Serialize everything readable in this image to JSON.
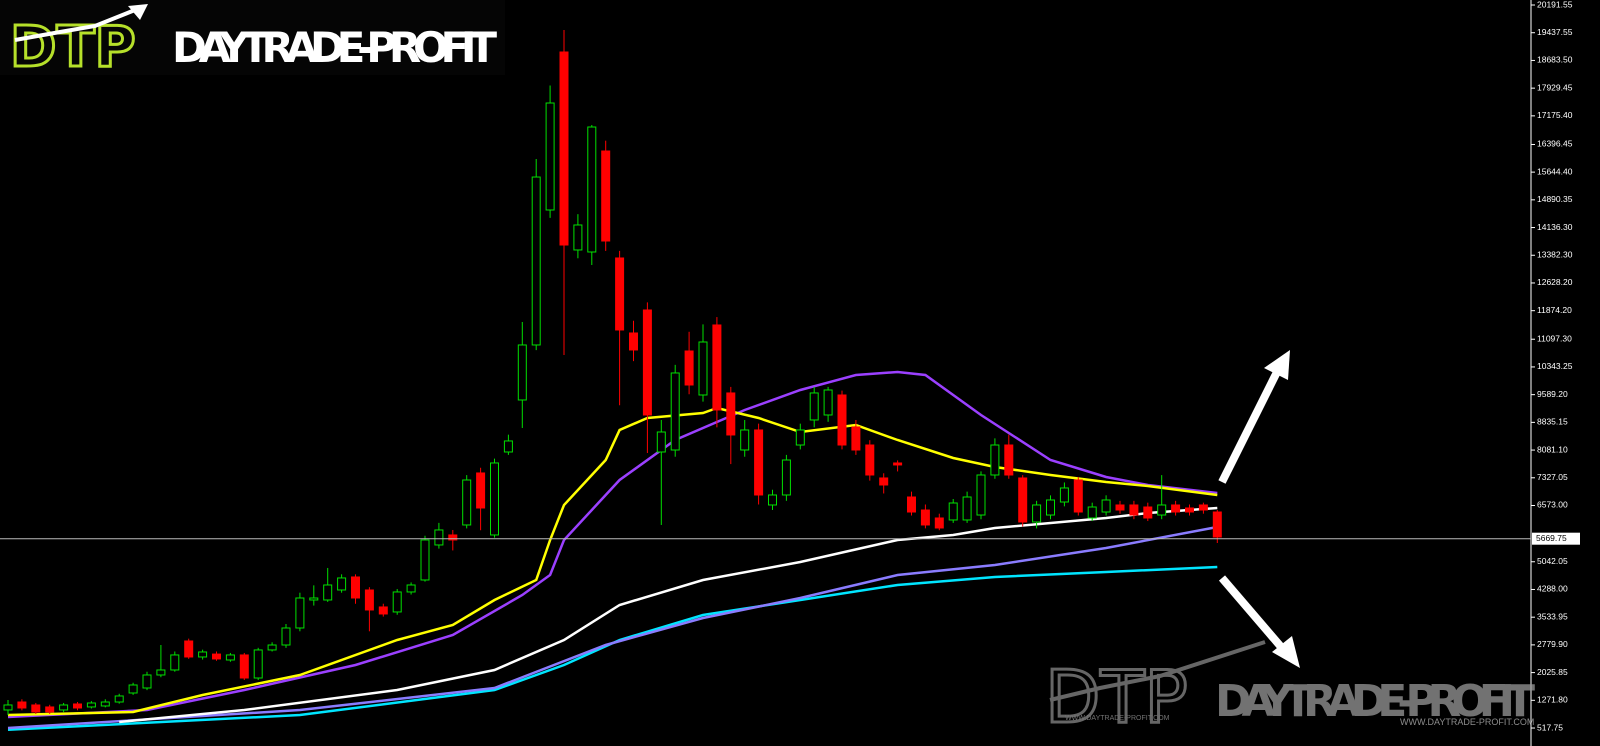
{
  "chart_data": {
    "type": "candlestick",
    "logo_mark": "DTP",
    "logo_text": "DAYTRADE-PROFIT",
    "watermark_mark": "DTP",
    "watermark_text": "DAYTRADE-PROFIT",
    "watermark_url_left": "WWW.DAYTRADE-PROFIT.COM",
    "watermark_url_right": "WWW.DAYTRADE-PROFIT.COM",
    "current_price": 5669.75,
    "up_color": "#00e000",
    "down_color": "#ff0000",
    "ylim": [
      464,
      20328
    ],
    "yticks": [
      20191.55,
      19437.55,
      {
        "value": 18683.5,
        "label": "18683.50"
      },
      17929.45,
      {
        "value": 17175.4,
        "label": "17175.40"
      },
      16396.45,
      {
        "value": 15644.4,
        "label": "15644.40"
      },
      14890.35,
      {
        "value": 14136.3,
        "label": "14136.30"
      },
      {
        "value": 13382.3,
        "label": "13382.30"
      },
      {
        "value": 12628.2,
        "label": "12628.20"
      },
      {
        "value": 11874.2,
        "label": "11874.20"
      },
      {
        "value": 11097.3,
        "label": "11097.30"
      },
      10343.25,
      {
        "value": 9589.2,
        "label": "9589.20"
      },
      8835.15,
      {
        "value": 8081.1,
        "label": "8081.10"
      },
      7327.05,
      {
        "value": 6573,
        "label": "6573.00"
      },
      5042.05,
      {
        "value": 4288,
        "label": "4288.00"
      },
      3533.95,
      {
        "value": 2779.9,
        "label": "2779.90"
      },
      2025.85,
      {
        "value": 1271.8,
        "label": "1271.80"
      },
      517.75
    ],
    "candles": {
      "open": [
        1009,
        1226,
        1145,
        1091,
        1009,
        1172,
        1091,
        1118,
        1226,
        1471,
        1607,
        1961,
        2097,
        2886,
        2451,
        2530,
        2369,
        2506,
        1879,
        2642,
        2777,
        3240,
        4002,
        4002,
        4274,
        4628,
        4274,
        3812,
        3676,
        4220,
        4546,
        5499,
        5771,
        6043,
        7458,
        5771,
        8029,
        9444,
        10941,
        14614,
        18913,
        13526,
        13471,
        16219,
        13308,
        11267,
        11893,
        8029,
        8083,
        10777,
        9580,
        11485,
        9635,
        8083,
        8628,
        6587,
        6859,
        8219,
        8900,
        9036,
        9580,
        8710,
        8219,
        7322,
        7730,
        6804,
        6450,
        6233,
        6179,
        6179,
        6314,
        7403,
        8219,
        7322,
        6124,
        6314,
        6668,
        7267,
        6233,
        6396,
        6587,
        6587,
        6532,
        6314,
        6587,
        6505,
        6587,
        6396
      ],
      "high": [
        1281,
        1300,
        1200,
        1150,
        1200,
        1226,
        1250,
        1300,
        1450,
        1750,
        2050,
        2777,
        2600,
        2950,
        2650,
        2600,
        2560,
        2560,
        2700,
        2850,
        3350,
        4200,
        4400,
        4873,
        4700,
        4700,
        4350,
        3900,
        4300,
        4480,
        5750,
        6100,
        5907,
        7400,
        7600,
        7850,
        8500,
        11566,
        16000,
        18000,
        19512,
        14500,
        16927,
        16500,
        13500,
        11600,
        12100,
        8900,
        10400,
        11300,
        11500,
        11700,
        9800,
        8900,
        8800,
        7000,
        7950,
        8800,
        9800,
        9800,
        9700,
        8900,
        8350,
        7450,
        7800,
        6950,
        6600,
        6350,
        6750,
        6950,
        7500,
        8400,
        8500,
        7400,
        6700,
        6850,
        7200,
        7350,
        6650,
        6850,
        6700,
        6700,
        6650,
        7400,
        6700,
        6600,
        6650,
        6450
      ],
      "low": [
        873,
        1000,
        900,
        900,
        950,
        1000,
        1050,
        1080,
        1180,
        1420,
        1550,
        1900,
        2050,
        2400,
        2380,
        2350,
        2320,
        1825,
        1825,
        2600,
        2700,
        3150,
        3850,
        3950,
        4200,
        3900,
        3150,
        3550,
        3600,
        4150,
        4500,
        5400,
        5350,
        5950,
        5900,
        5700,
        7950,
        8682,
        10800,
        14400,
        10668,
        13300,
        13117,
        13500,
        9300,
        10500,
        8000,
        6043,
        7900,
        9600,
        9400,
        8700,
        7700,
        7900,
        6600,
        6450,
        6700,
        8100,
        8700,
        8850,
        8100,
        7950,
        7250,
        6900,
        7500,
        6300,
        5950,
        5900,
        6100,
        6100,
        6200,
        7300,
        7300,
        6000,
        5950,
        6200,
        6550,
        6300,
        6150,
        6300,
        6350,
        6200,
        6150,
        6200,
        6300,
        6300,
        6350,
        5553
      ],
      "close": [
        1145,
        1063,
        954,
        954,
        1145,
        1063,
        1199,
        1226,
        1390,
        1689,
        1961,
        2097,
        2506,
        2451,
        2587,
        2397,
        2506,
        1879,
        2642,
        2777,
        3240,
        4056,
        4056,
        4410,
        4601,
        4056,
        3730,
        3621,
        4220,
        4410,
        5635,
        5907,
        5635,
        7267,
        6505,
        7730,
        8329,
        10941,
        15511,
        17525,
        13661,
        14206,
        16872,
        13770,
        11349,
        10805,
        9036,
        8573,
        10179,
        9852,
        11022,
        9172,
        8492,
        8628,
        6859,
        6859,
        7811,
        8628,
        9635,
        9716,
        8219,
        8083,
        7403,
        7131,
        7676,
        6396,
        6043,
        5961,
        6641,
        6804,
        7403,
        8219,
        7403,
        6124,
        6587,
        6723,
        7050,
        6396,
        6532,
        6723,
        6450,
        6314,
        6233,
        6587,
        6396,
        6396,
        6450,
        5716
      ]
    },
    "lines": [
      {
        "color": "#00e5ff",
        "x": [
          0,
          21,
          35,
          40,
          44,
          50,
          57,
          64,
          71,
          79,
          87
        ],
        "values": [
          470,
          873,
          1553,
          2233,
          2913,
          3594,
          4002,
          4410,
          4628,
          4764,
          4900
        ]
      },
      {
        "color": "#8a7cff",
        "x": [
          0,
          21,
          35,
          43,
          50,
          57,
          64,
          71,
          79,
          87
        ],
        "values": [
          519,
          1009,
          1607,
          2777,
          3512,
          4056,
          4682,
          4954,
          5417,
          5988
        ]
      },
      {
        "color": "#ffffff",
        "x": [
          8,
          17,
          28,
          35,
          40,
          44,
          50,
          57,
          64,
          68,
          71,
          79,
          82,
          87
        ],
        "values": [
          682,
          1009,
          1553,
          2097,
          2913,
          3866,
          4546,
          5036,
          5635,
          5771,
          5961,
          6233,
          6369,
          6505
        ]
      },
      {
        "color": "#9b40ff",
        "x": [
          0,
          10,
          17,
          25,
          32,
          37,
          39,
          40,
          44,
          48,
          53,
          57,
          61,
          64,
          66,
          70,
          75,
          79,
          82,
          87
        ],
        "values": [
          818,
          1009,
          1553,
          2233,
          3050,
          4138,
          4682,
          5635,
          7267,
          8356,
          9172,
          9716,
          10124,
          10206,
          10124,
          9036,
          7811,
          7349,
          7131,
          6913
        ]
      },
      {
        "color": "#ffff00",
        "x": [
          0,
          9,
          14,
          21,
          28,
          32,
          35,
          38,
          39,
          40,
          43,
          44,
          46,
          50,
          51,
          54,
          57,
          61,
          64,
          68,
          71,
          75,
          79,
          82,
          87
        ],
        "values": [
          873,
          954,
          1417,
          1961,
          2913,
          3322,
          4002,
          4546,
          5635,
          6587,
          7811,
          8628,
          8954,
          9090,
          9226,
          8954,
          8573,
          8764,
          8356,
          7866,
          7621,
          7403,
          7213,
          7104,
          6859
        ]
      }
    ]
  }
}
